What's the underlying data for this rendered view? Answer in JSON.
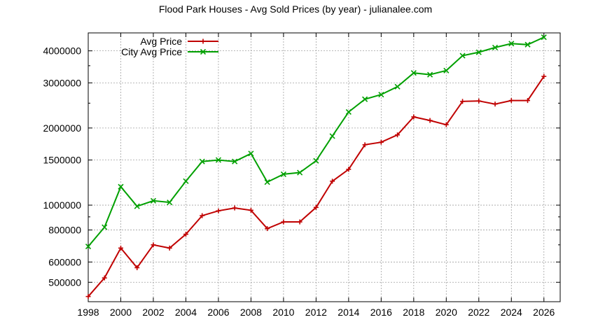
{
  "chart_data": {
    "type": "line",
    "title": "Flood Park Houses - Avg Sold Prices (by year) - julianalee.com",
    "xlabel": "",
    "ylabel": "",
    "x": [
      1998,
      1999,
      2000,
      2001,
      2002,
      2003,
      2004,
      2005,
      2006,
      2007,
      2008,
      2009,
      2010,
      2011,
      2012,
      2013,
      2014,
      2015,
      2016,
      2017,
      2018,
      2019,
      2020,
      2021,
      2022,
      2023,
      2024,
      2025,
      2026
    ],
    "xlim": [
      1998,
      2027
    ],
    "x_ticks": [
      "1998",
      "2000",
      "2002",
      "2004",
      "2006",
      "2008",
      "2010",
      "2012",
      "2014",
      "2016",
      "2018",
      "2020",
      "2022",
      "2024",
      "2026"
    ],
    "yscale": "log",
    "ylim": [
      420000,
      4700000
    ],
    "y_ticks": [
      "500000",
      "600000",
      "800000",
      "1000000",
      "1500000",
      "2000000",
      "3000000",
      "4000000"
    ],
    "grid": true,
    "legend_position": "top-left",
    "series": [
      {
        "name": "Avg Price",
        "color": "#c00000",
        "marker": "plus",
        "values": [
          440000,
          520000,
          680000,
          570000,
          700000,
          680000,
          770000,
          910000,
          950000,
          975000,
          955000,
          810000,
          860000,
          860000,
          980000,
          1240000,
          1380000,
          1720000,
          1760000,
          1880000,
          2210000,
          2140000,
          2060000,
          2540000,
          2550000,
          2480000,
          2560000,
          2560000,
          3180000
        ]
      },
      {
        "name": "City Avg Price",
        "color": "#00a000",
        "marker": "cross",
        "values": [
          690000,
          820000,
          1180000,
          990000,
          1040000,
          1025000,
          1240000,
          1480000,
          1500000,
          1480000,
          1590000,
          1230000,
          1320000,
          1340000,
          1490000,
          1860000,
          2310000,
          2590000,
          2700000,
          2900000,
          3280000,
          3230000,
          3350000,
          3830000,
          3950000,
          4120000,
          4270000,
          4230000,
          4520000
        ]
      }
    ]
  }
}
